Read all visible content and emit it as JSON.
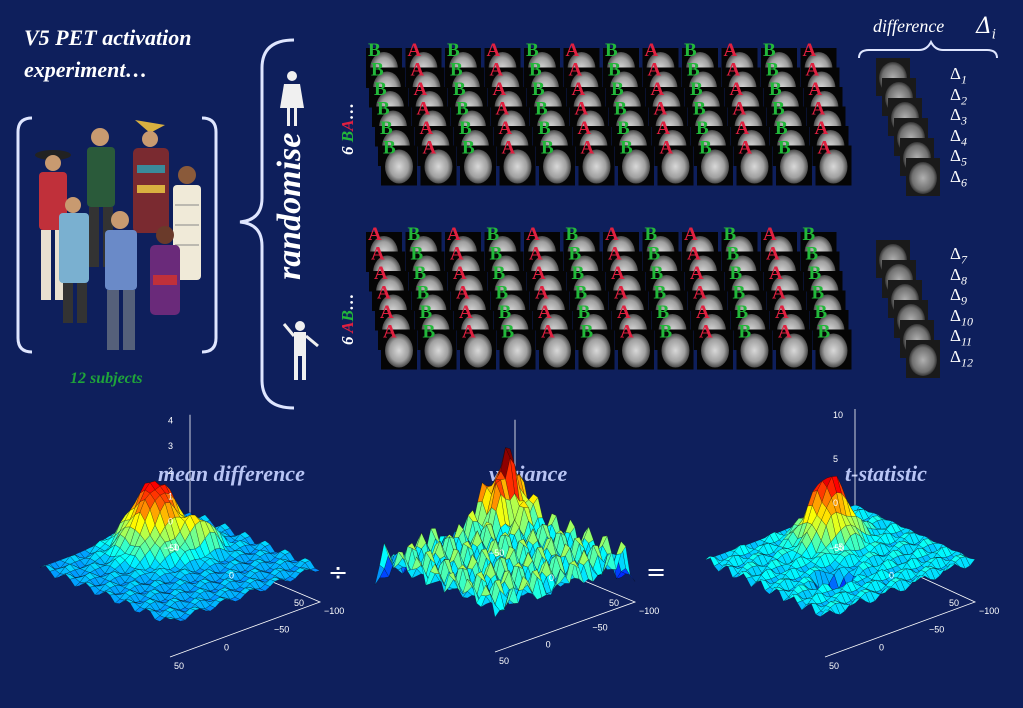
{
  "title_line1": "V5 PET activation",
  "title_line2": "experiment…",
  "subjects_label": "12 subjects",
  "randomise_label": "randomise",
  "order_top": {
    "count": "6 ",
    "first": "B",
    "second": "A",
    "dots": "…"
  },
  "order_bottom": {
    "count": "6 ",
    "first": "A",
    "second": "B",
    "dots": "…"
  },
  "scan_top_letters": [
    "B",
    "A",
    "B",
    "A",
    "B",
    "A",
    "B",
    "A",
    "B",
    "A",
    "B",
    "A"
  ],
  "scan_bottom_letters": [
    "A",
    "B",
    "A",
    "B",
    "A",
    "B",
    "A",
    "B",
    "A",
    "B",
    "A",
    "B"
  ],
  "difference_label": "difference",
  "delta_symbol": "Δ",
  "delta_head_sub": "i",
  "deltas_top": [
    "1",
    "2",
    "3",
    "4",
    "5",
    "6"
  ],
  "deltas_bottom": [
    "7",
    "8",
    "9",
    "10",
    "11",
    "12"
  ],
  "plots": [
    {
      "title": "mean difference",
      "z_ticks": [
        "4",
        "3",
        "2",
        "1",
        "0",
        "−1"
      ],
      "x_ticks": [
        "−50",
        "0",
        "50"
      ],
      "y_ticks": [
        "−100",
        "−50",
        "0",
        "50"
      ]
    },
    {
      "title": "variance",
      "z_ticks": [],
      "x_ticks": [
        "−50",
        "0",
        "50"
      ],
      "y_ticks": [
        "−100",
        "−50",
        "0",
        "50"
      ]
    },
    {
      "title": "t-statistic",
      "z_ticks": [
        "10",
        "5",
        "0",
        "−5"
      ],
      "x_ticks": [
        "−50",
        "0",
        "50"
      ],
      "y_ticks": [
        "−100",
        "−50",
        "0",
        "50"
      ]
    }
  ],
  "op_divide": "÷",
  "op_equals": "=",
  "colors": {
    "background": "#0e1f5c",
    "letter_a": "#e02040",
    "letter_b": "#22b83a",
    "bracket": "#dfe6ff"
  }
}
